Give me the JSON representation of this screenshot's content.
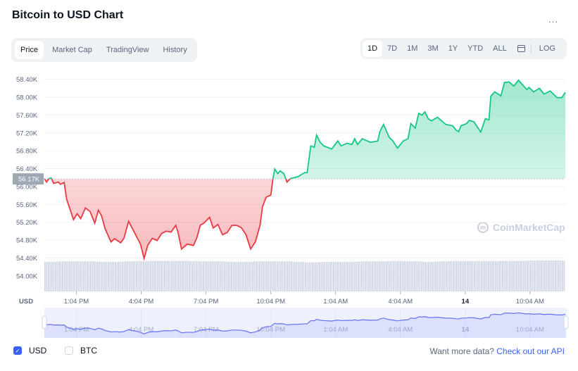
{
  "header": {
    "title": "Bitcoin to USD Chart",
    "more_icon": "ellipsis-icon",
    "more": "..."
  },
  "tabs": [
    {
      "label": "Price",
      "active": true
    },
    {
      "label": "Market Cap"
    },
    {
      "label": "TradingView"
    },
    {
      "label": "History"
    }
  ],
  "ranges": [
    {
      "label": "1D",
      "active": true
    },
    {
      "label": "7D"
    },
    {
      "label": "1M"
    },
    {
      "label": "3M"
    },
    {
      "label": "1Y"
    },
    {
      "label": "YTD"
    },
    {
      "label": "ALL"
    }
  ],
  "calendar_icon": "calendar-icon",
  "log_label": "LOG",
  "watermark": "CoinMarketCap",
  "footer": {
    "usd": "USD",
    "usd_checked": true,
    "btc": "BTC",
    "btc_checked": false,
    "api_text": "Want more data?",
    "api_link": "Check out our API"
  },
  "colors": {
    "up": "#16c784",
    "down": "#ea3943",
    "navigator_line": "#6471f5",
    "volume": "#cfd6e4"
  },
  "chart_data": {
    "type": "line",
    "title": "",
    "ylabel": "USD",
    "ylim": [
      53.65,
      58.6
    ],
    "yticks": [
      "58.40K",
      "58.00K",
      "57.60K",
      "57.20K",
      "56.80K",
      "56.40K",
      "56.00K",
      "55.60K",
      "55.20K",
      "54.80K",
      "54.40K",
      "54.00K"
    ],
    "ytick_values": [
      58.4,
      58.0,
      57.6,
      57.2,
      56.8,
      56.4,
      56.0,
      55.6,
      55.2,
      54.8,
      54.4,
      54.0
    ],
    "xticks": [
      {
        "label": "1:04 PM",
        "time": "1:04 PM"
      },
      {
        "label": "4:04 PM",
        "time": "4:04 PM"
      },
      {
        "label": "7:04 PM",
        "time": "7:04 PM"
      },
      {
        "label": "10:04 PM",
        "time": "10:04 PM"
      },
      {
        "label": "1:04 AM",
        "time": "1:04 AM"
      },
      {
        "label": "4:04 AM",
        "time": "4:04 AM"
      },
      {
        "label": "14",
        "time": "7:04 AM",
        "bold": true
      },
      {
        "label": "10:04 AM",
        "time": "10:04 AM"
      }
    ],
    "reference": {
      "value": 56.17,
      "label": "56.17K"
    },
    "grid": true,
    "unit": "K USD",
    "points": [
      [
        "11:35 AM",
        56.18
      ],
      [
        "11:41 AM",
        56.1
      ],
      [
        "11:48 AM",
        56.18
      ],
      [
        "11:54 AM",
        56.19
      ],
      [
        "12:01 PM",
        56.07
      ],
      [
        "12:14 PM",
        56.1
      ],
      [
        "12:20 PM",
        56.05
      ],
      [
        "12:30 PM",
        56.09
      ],
      [
        "12:37 PM",
        55.71
      ],
      [
        "12:46 PM",
        55.5
      ],
      [
        "12:56 PM",
        55.26
      ],
      [
        "1:06 PM",
        55.39
      ],
      [
        "1:16 PM",
        55.28
      ],
      [
        "1:29 PM",
        55.52
      ],
      [
        "1:42 PM",
        55.44
      ],
      [
        "1:55 PM",
        55.18
      ],
      [
        "2:05 PM",
        55.47
      ],
      [
        "2:14 PM",
        55.34
      ],
      [
        "2:24 PM",
        55.05
      ],
      [
        "2:40 PM",
        54.76
      ],
      [
        "2:50 PM",
        54.83
      ],
      [
        "3:07 PM",
        54.74
      ],
      [
        "3:16 PM",
        54.84
      ],
      [
        "3:29 PM",
        55.22
      ],
      [
        "3:42 PM",
        55.02
      ],
      [
        "4:02 PM",
        54.71
      ],
      [
        "4:12 PM",
        54.39
      ],
      [
        "4:22 PM",
        54.68
      ],
      [
        "4:35 PM",
        54.84
      ],
      [
        "4:48 PM",
        54.79
      ],
      [
        "5:01 PM",
        54.95
      ],
      [
        "5:14 PM",
        55.0
      ],
      [
        "5:27 PM",
        54.98
      ],
      [
        "5:40 PM",
        55.13
      ],
      [
        "5:46 PM",
        54.98
      ],
      [
        "5:56 PM",
        54.6
      ],
      [
        "6:12 PM",
        54.71
      ],
      [
        "6:29 PM",
        54.68
      ],
      [
        "6:38 PM",
        54.84
      ],
      [
        "6:48 PM",
        55.13
      ],
      [
        "6:58 PM",
        55.18
      ],
      [
        "7:14 PM",
        55.31
      ],
      [
        "7:24 PM",
        55.07
      ],
      [
        "7:37 PM",
        55.15
      ],
      [
        "7:50 PM",
        54.92
      ],
      [
        "8:03 PM",
        54.97
      ],
      [
        "8:16 PM",
        55.13
      ],
      [
        "8:29 PM",
        55.13
      ],
      [
        "8:42 PM",
        55.08
      ],
      [
        "8:55 PM",
        54.92
      ],
      [
        "9:08 PM",
        54.6
      ],
      [
        "9:21 PM",
        54.76
      ],
      [
        "9:34 PM",
        55.13
      ],
      [
        "9:41 PM",
        55.55
      ],
      [
        "9:51 PM",
        55.76
      ],
      [
        "10:04 PM",
        55.81
      ],
      [
        "10:10 PM",
        56.18
      ],
      [
        "10:15 PM",
        56.39
      ],
      [
        "10:23 PM",
        56.29
      ],
      [
        "10:30 PM",
        56.35
      ],
      [
        "10:40 PM",
        56.29
      ],
      [
        "10:49 PM",
        56.1
      ],
      [
        "10:59 PM",
        56.18
      ],
      [
        "11:19 PM",
        56.22
      ],
      [
        "11:38 PM",
        56.31
      ],
      [
        "11:45 PM",
        56.31
      ],
      [
        "11:55 PM",
        56.91
      ],
      [
        "12:05 AM",
        56.88
      ],
      [
        "12:11 AM",
        57.15
      ],
      [
        "12:21 AM",
        56.99
      ],
      [
        "12:31 AM",
        56.91
      ],
      [
        "12:53 AM",
        56.84
      ],
      [
        "1:10 AM",
        57.02
      ],
      [
        "1:19 AM",
        56.91
      ],
      [
        "1:36 AM",
        56.97
      ],
      [
        "1:49 AM",
        56.94
      ],
      [
        "1:57 AM",
        57.07
      ],
      [
        "2:05 AM",
        56.94
      ],
      [
        "2:18 AM",
        57.07
      ],
      [
        "2:41 AM",
        56.99
      ],
      [
        "3:01 AM",
        57.02
      ],
      [
        "3:07 AM",
        57.23
      ],
      [
        "3:17 AM",
        57.39
      ],
      [
        "3:33 AM",
        57.1
      ],
      [
        "3:43 AM",
        57.02
      ],
      [
        "3:56 AM",
        56.86
      ],
      [
        "4:12 AM",
        57.02
      ],
      [
        "4:25 AM",
        57.07
      ],
      [
        "4:33 AM",
        57.41
      ],
      [
        "4:45 AM",
        57.31
      ],
      [
        "4:55 AM",
        57.64
      ],
      [
        "5:04 AM",
        57.6
      ],
      [
        "5:12 AM",
        57.67
      ],
      [
        "5:21 AM",
        57.52
      ],
      [
        "5:30 AM",
        57.47
      ],
      [
        "5:47 AM",
        57.55
      ],
      [
        "6:10 AM",
        57.39
      ],
      [
        "6:29 AM",
        57.36
      ],
      [
        "6:39 AM",
        57.26
      ],
      [
        "6:46 AM",
        57.23
      ],
      [
        "6:52 AM",
        57.36
      ],
      [
        "7:08 AM",
        57.41
      ],
      [
        "7:15 AM",
        57.48
      ],
      [
        "7:28 AM",
        57.45
      ],
      [
        "7:47 AM",
        57.22
      ],
      [
        "8:00 AM",
        57.52
      ],
      [
        "8:10 AM",
        57.49
      ],
      [
        "8:15 AM",
        58.02
      ],
      [
        "8:26 AM",
        58.12
      ],
      [
        "8:43 AM",
        58.03
      ],
      [
        "8:53 AM",
        58.33
      ],
      [
        "9:06 AM",
        58.34
      ],
      [
        "9:19 AM",
        58.25
      ],
      [
        "9:32 AM",
        58.38
      ],
      [
        "9:55 AM",
        58.17
      ],
      [
        "10:01 AM",
        58.22
      ],
      [
        "10:14 AM",
        58.12
      ],
      [
        "10:30 AM",
        58.2
      ],
      [
        "10:43 AM",
        58.07
      ],
      [
        "11:00 AM",
        58.14
      ],
      [
        "11:19 AM",
        57.99
      ],
      [
        "11:32 AM",
        57.99
      ],
      [
        "11:42 AM",
        58.11
      ]
    ],
    "volume_relative": [
      0.96,
      0.97,
      0.97,
      0.97,
      0.96,
      0.96,
      0.97,
      0.98,
      0.99,
      0.99,
      0.99,
      0.98,
      0.97,
      0.97,
      0.96,
      0.96,
      0.97,
      0.97,
      0.97,
      0.96,
      0.94,
      0.95,
      0.96,
      0.96,
      0.97,
      0.97,
      0.98,
      0.98,
      0.97,
      0.96,
      0.97,
      0.98,
      0.98,
      0.98,
      0.98,
      0.99,
      0.99,
      1.0,
      1.0,
      1.0
    ]
  }
}
